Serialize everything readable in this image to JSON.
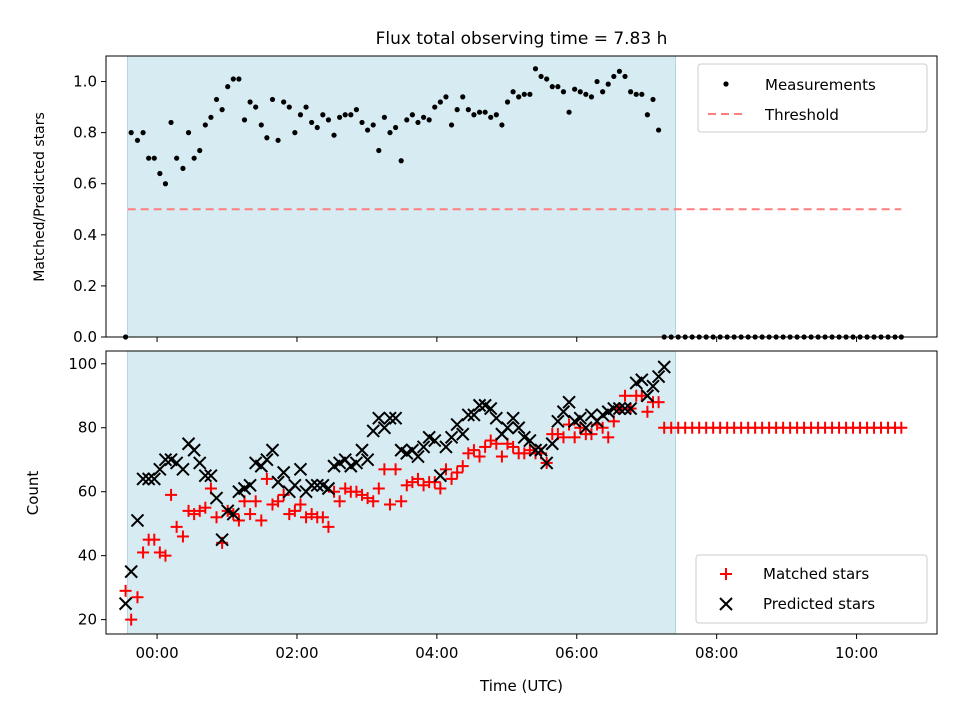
{
  "chart_data": [
    {
      "type": "scatter",
      "title": "Flux total observing time = 7.83 h",
      "xlabel": "",
      "ylabel": "Matched/Predicted stars",
      "xlim": [
        "-0.73",
        "11.15"
      ],
      "ylim": [
        0,
        1.1
      ],
      "yticks": [
        0.0,
        0.2,
        0.4,
        0.6,
        0.8,
        1.0
      ],
      "ytick_labels": [
        "0.0",
        "0.2",
        "0.4",
        "0.6",
        "0.8",
        "1.0"
      ],
      "xticks": [
        0,
        2,
        4,
        6,
        8,
        10
      ],
      "xtick_labels": [
        "",
        "",
        "",
        "",
        "",
        ""
      ],
      "shaded_span": [
        -0.42,
        7.41
      ],
      "legend": {
        "position": "top-right",
        "entries": [
          "Measurements",
          "Threshold"
        ]
      },
      "threshold": {
        "name": "Threshold",
        "y": 0.5,
        "x_range": [
          -0.42,
          10.64
        ],
        "color": "#ff7f7f"
      },
      "series": [
        {
          "name": "Measurements",
          "marker": "dot",
          "color": "#000000",
          "x": [
            -0.45,
            -0.37,
            -0.28,
            -0.2,
            -0.12,
            -0.04,
            0.04,
            0.12,
            0.2,
            0.28,
            0.37,
            0.45,
            0.53,
            0.61,
            0.69,
            0.77,
            0.85,
            0.93,
            1.01,
            1.09,
            1.17,
            1.25,
            1.33,
            1.41,
            1.49,
            1.57,
            1.65,
            1.73,
            1.81,
            1.89,
            1.97,
            2.05,
            2.13,
            2.21,
            2.29,
            2.37,
            2.45,
            2.53,
            2.61,
            2.69,
            2.77,
            2.85,
            2.93,
            3.01,
            3.09,
            3.17,
            3.25,
            3.33,
            3.41,
            3.49,
            3.57,
            3.65,
            3.73,
            3.81,
            3.89,
            3.97,
            4.05,
            4.13,
            4.21,
            4.29,
            4.37,
            4.45,
            4.53,
            4.61,
            4.69,
            4.77,
            4.85,
            4.93,
            5.01,
            5.09,
            5.17,
            5.25,
            5.33,
            5.41,
            5.49,
            5.57,
            5.65,
            5.73,
            5.81,
            5.89,
            5.97,
            6.05,
            6.13,
            6.21,
            6.29,
            6.37,
            6.45,
            6.53,
            6.61,
            6.69,
            6.77,
            6.85,
            6.93,
            7.01,
            7.09,
            7.17,
            7.25,
            7.35,
            7.45,
            7.55,
            7.65,
            7.75,
            7.85,
            7.95,
            8.05,
            8.15,
            8.25,
            8.35,
            8.45,
            8.55,
            8.65,
            8.75,
            8.85,
            8.95,
            9.05,
            9.15,
            9.25,
            9.35,
            9.45,
            9.55,
            9.65,
            9.75,
            9.85,
            9.95,
            10.05,
            10.15,
            10.25,
            10.35,
            10.45,
            10.55,
            10.64
          ],
          "y": [
            0.0,
            0.8,
            0.77,
            0.8,
            0.7,
            0.7,
            0.64,
            0.6,
            0.84,
            0.7,
            0.66,
            0.8,
            0.7,
            0.73,
            0.83,
            0.86,
            0.93,
            0.89,
            0.98,
            1.01,
            1.01,
            0.85,
            0.92,
            0.9,
            0.83,
            0.78,
            0.93,
            0.77,
            0.92,
            0.9,
            0.8,
            0.87,
            0.9,
            0.84,
            0.82,
            0.87,
            0.85,
            0.79,
            0.86,
            0.87,
            0.87,
            0.89,
            0.84,
            0.81,
            0.83,
            0.73,
            0.86,
            0.8,
            0.82,
            0.69,
            0.85,
            0.87,
            0.84,
            0.86,
            0.85,
            0.9,
            0.92,
            0.94,
            0.83,
            0.89,
            0.94,
            0.89,
            0.87,
            0.88,
            0.88,
            0.86,
            0.87,
            0.83,
            0.92,
            0.96,
            0.94,
            0.95,
            0.95,
            1.05,
            1.02,
            1.01,
            0.98,
            0.98,
            0.96,
            0.88,
            0.97,
            0.96,
            0.95,
            0.94,
            1.0,
            0.96,
            0.99,
            1.02,
            1.04,
            1.02,
            0.96,
            0.95,
            0.95,
            0.87,
            0.93,
            0.81,
            0.0,
            0.0,
            0.0,
            0.0,
            0.0,
            0.0,
            0.0,
            0.0,
            0.0,
            0.0,
            0.0,
            0.0,
            0.0,
            0.0,
            0.0,
            0.0,
            0.0,
            0.0,
            0.0,
            0.0,
            0.0,
            0.0,
            0.0,
            0.0,
            0.0,
            0.0,
            0.0,
            0.0,
            0.0,
            0.0,
            0.0,
            0.0,
            0.0,
            0.0,
            0.0
          ]
        }
      ]
    },
    {
      "type": "scatter",
      "title": "",
      "xlabel": "Time (UTC)",
      "ylabel": "Count",
      "xlim": [
        "-0.73",
        "11.15"
      ],
      "ylim": [
        15.5,
        104
      ],
      "yticks": [
        20,
        40,
        60,
        80,
        100
      ],
      "ytick_labels": [
        "20",
        "40",
        "60",
        "80",
        "100"
      ],
      "xticks": [
        0,
        2,
        4,
        6,
        8,
        10
      ],
      "xtick_labels": [
        "00:00",
        "02:00",
        "04:00",
        "06:00",
        "08:00",
        "10:00"
      ],
      "shaded_span": [
        -0.42,
        7.41
      ],
      "legend": {
        "position": "bottom-right",
        "entries": [
          "Matched stars",
          "Predicted stars"
        ]
      },
      "series": [
        {
          "name": "Matched stars",
          "marker": "plus",
          "color": "#ff0000",
          "x": [
            -0.45,
            -0.37,
            -0.28,
            -0.2,
            -0.12,
            -0.04,
            0.04,
            0.12,
            0.2,
            0.28,
            0.37,
            0.45,
            0.53,
            0.61,
            0.69,
            0.77,
            0.85,
            0.93,
            1.01,
            1.09,
            1.17,
            1.25,
            1.33,
            1.41,
            1.49,
            1.57,
            1.65,
            1.73,
            1.81,
            1.89,
            1.97,
            2.05,
            2.13,
            2.21,
            2.29,
            2.37,
            2.45,
            2.53,
            2.61,
            2.69,
            2.77,
            2.85,
            2.93,
            3.01,
            3.09,
            3.17,
            3.25,
            3.33,
            3.41,
            3.49,
            3.57,
            3.65,
            3.73,
            3.81,
            3.89,
            3.97,
            4.05,
            4.13,
            4.21,
            4.29,
            4.37,
            4.45,
            4.53,
            4.61,
            4.69,
            4.77,
            4.85,
            4.93,
            5.01,
            5.09,
            5.17,
            5.25,
            5.33,
            5.41,
            5.49,
            5.57,
            5.65,
            5.73,
            5.81,
            5.89,
            5.97,
            6.05,
            6.13,
            6.21,
            6.29,
            6.37,
            6.45,
            6.53,
            6.61,
            6.69,
            6.77,
            6.85,
            6.93,
            7.01,
            7.09,
            7.17,
            7.25,
            7.35,
            7.45,
            7.55,
            7.65,
            7.75,
            7.85,
            7.95,
            8.05,
            8.15,
            8.25,
            8.35,
            8.45,
            8.55,
            8.65,
            8.75,
            8.85,
            8.95,
            9.05,
            9.15,
            9.25,
            9.35,
            9.45,
            9.55,
            9.65,
            9.75,
            9.85,
            9.95,
            10.05,
            10.15,
            10.25,
            10.35,
            10.45,
            10.55,
            10.64
          ],
          "y": [
            29,
            20,
            27,
            41,
            45,
            45,
            41,
            40,
            59,
            49,
            46,
            54,
            53,
            54,
            55,
            61,
            52,
            44,
            54,
            53,
            51,
            57,
            53,
            57,
            51,
            64,
            56,
            57,
            59,
            53,
            54,
            56,
            52,
            53,
            52,
            52,
            49,
            60,
            57,
            61,
            60,
            60,
            59,
            58,
            57,
            61,
            67,
            56,
            67,
            57,
            62,
            63,
            64,
            62,
            63,
            63,
            61,
            67,
            64,
            66,
            68,
            72,
            73,
            71,
            74,
            76,
            75,
            71,
            75,
            74,
            72,
            72,
            73,
            72,
            72,
            69,
            78,
            78,
            77,
            81,
            77,
            80,
            78,
            78,
            81,
            80,
            77,
            82,
            86,
            90,
            86,
            90,
            90,
            85,
            88,
            88,
            80,
            80,
            80,
            80,
            80,
            80,
            80,
            80,
            80,
            80,
            80,
            80,
            80,
            80,
            80,
            80,
            80,
            80,
            80,
            80,
            80,
            80,
            80,
            80,
            80,
            80,
            80,
            80,
            80,
            80,
            80,
            80,
            80,
            80,
            80
          ]
        },
        {
          "name": "Predicted stars",
          "marker": "x",
          "color": "#000000",
          "x": [
            -0.45,
            -0.37,
            -0.28,
            -0.2,
            -0.12,
            -0.04,
            0.04,
            0.12,
            0.2,
            0.28,
            0.37,
            0.45,
            0.53,
            0.61,
            0.69,
            0.77,
            0.85,
            0.93,
            1.01,
            1.09,
            1.17,
            1.25,
            1.33,
            1.41,
            1.49,
            1.57,
            1.65,
            1.73,
            1.81,
            1.89,
            1.97,
            2.05,
            2.13,
            2.21,
            2.29,
            2.37,
            2.45,
            2.53,
            2.61,
            2.69,
            2.77,
            2.85,
            2.93,
            3.01,
            3.09,
            3.17,
            3.25,
            3.33,
            3.41,
            3.49,
            3.57,
            3.65,
            3.73,
            3.81,
            3.89,
            3.97,
            4.05,
            4.13,
            4.21,
            4.29,
            4.37,
            4.45,
            4.53,
            4.61,
            4.69,
            4.77,
            4.85,
            4.93,
            5.01,
            5.09,
            5.17,
            5.25,
            5.33,
            5.41,
            5.49,
            5.57,
            5.65,
            5.73,
            5.81,
            5.89,
            5.97,
            6.05,
            6.13,
            6.21,
            6.29,
            6.37,
            6.45,
            6.53,
            6.61,
            6.69,
            6.77,
            6.85,
            6.93,
            7.01,
            7.09,
            7.17,
            7.25
          ],
          "y": [
            25,
            35,
            51,
            64,
            64,
            64,
            67,
            70,
            70,
            69,
            67,
            75,
            73,
            69,
            65,
            65,
            58,
            45,
            54,
            53,
            60,
            61,
            62,
            69,
            68,
            70,
            73,
            63,
            66,
            60,
            62,
            67,
            60,
            62,
            62,
            62,
            61,
            68,
            69,
            70,
            68,
            69,
            73,
            70,
            79,
            83,
            80,
            83,
            83,
            73,
            72,
            73,
            71,
            74,
            77,
            76,
            65,
            74,
            77,
            81,
            78,
            84,
            84,
            87,
            87,
            86,
            83,
            78,
            80,
            83,
            80,
            77,
            76,
            73,
            73,
            69,
            75,
            82,
            85,
            88,
            82,
            83,
            80,
            84,
            82,
            84,
            85,
            86,
            86,
            86,
            86,
            94,
            95,
            90,
            93,
            96,
            99
          ]
        }
      ]
    }
  ]
}
